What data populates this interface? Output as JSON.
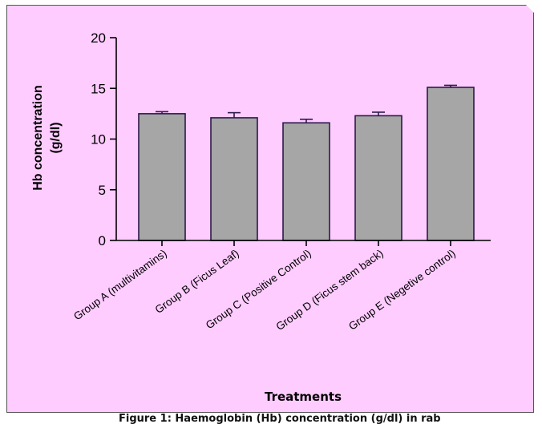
{
  "caption": "Figure 1: Haemoglobin (Hb) concentration (g/dl) in rab",
  "colors": {
    "panel_bg": "#ffccff",
    "bar_fill": "#a6a6a6",
    "bar_stroke": "#2b1a4a",
    "axis": "#000000"
  },
  "chart_data": {
    "type": "bar",
    "title": "",
    "xlabel": "Treatments",
    "ylabel_lines": [
      "Hb concentration",
      "(g/dl)"
    ],
    "categories": [
      "Group A (multivitamins)",
      "Group B (Ficus Leaf)",
      "Group C (Positive Control)",
      "Group D (Ficus stem back)",
      "Group E (Negetive control)"
    ],
    "values": [
      12.5,
      12.1,
      11.6,
      12.3,
      15.1
    ],
    "error_bars": [
      0.2,
      0.5,
      0.35,
      0.35,
      0.2
    ],
    "ylim": [
      0,
      20
    ],
    "yticks": [
      0,
      5,
      10,
      15,
      20
    ],
    "grid": false,
    "legend": "none"
  }
}
